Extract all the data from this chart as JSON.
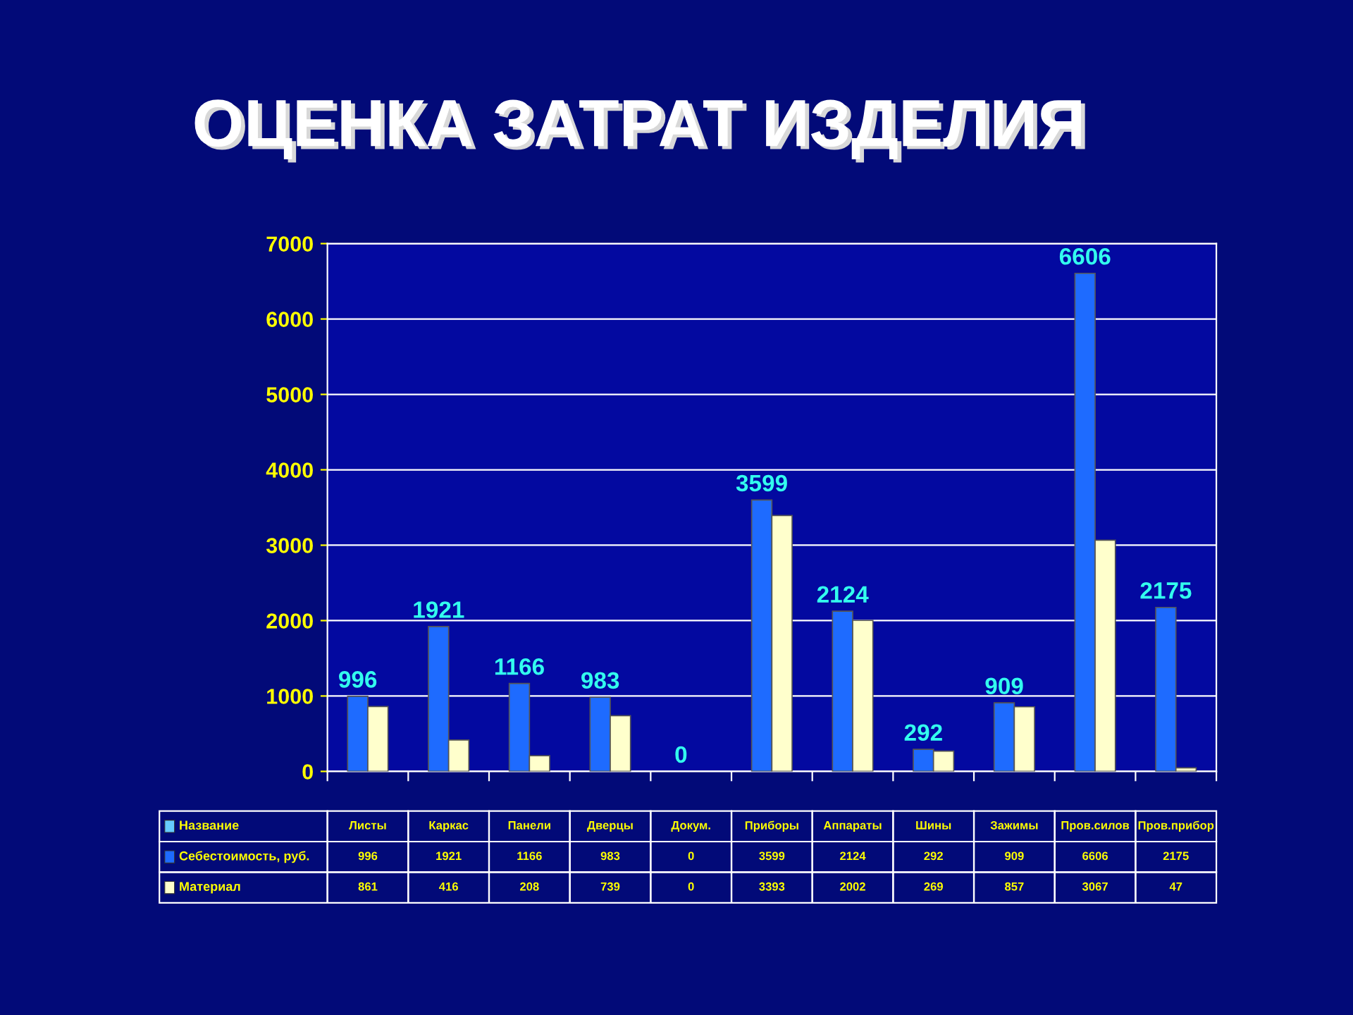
{
  "chart_data": {
    "type": "bar",
    "title": "ОЦЕНКА ЗАТРАТ ИЗДЕЛИЯ",
    "xlabel": "Название",
    "categories": [
      "Листы",
      "Каркас",
      "Панели",
      "Дверцы",
      "Докум.",
      "Приборы",
      "Аппараты",
      "Шины",
      "Зажимы",
      "Пров.силов",
      "Пров.прибор"
    ],
    "series": [
      {
        "name": "Себестоимость, руб.",
        "color": "#1e6bff",
        "values": [
          996,
          1921,
          1166,
          983,
          0,
          3599,
          2124,
          292,
          909,
          6606,
          2175
        ]
      },
      {
        "name": "Материал",
        "color": "#ffffcc",
        "values": [
          861,
          416,
          208,
          739,
          0,
          3393,
          2002,
          269,
          857,
          3067,
          47
        ]
      }
    ],
    "annotations": [
      {
        "text": "996",
        "x": "Листы",
        "y": 996
      },
      {
        "text": "1921",
        "x": "Каркас",
        "y": 1921
      },
      {
        "text": "1166",
        "x": "Панели",
        "y": 1166
      },
      {
        "text": "983",
        "x": "Дверцы",
        "y": 983
      },
      {
        "text": "0",
        "x": "Докум.",
        "y": 0
      },
      {
        "text": "3599",
        "x": "Приборы",
        "y": 3599
      },
      {
        "text": "2124",
        "x": "Аппараты",
        "y": 2124
      },
      {
        "text": "292",
        "x": "Шины",
        "y": 292
      },
      {
        "text": "909",
        "x": "Зажимы",
        "y": 909
      },
      {
        "text": "6606",
        "x": "Пров.силов",
        "y": 6606
      },
      {
        "text": "2175",
        "x": "Пров.прибор",
        "y": 2175
      }
    ],
    "ylim": [
      0,
      7000
    ],
    "yticks": [
      0,
      1000,
      2000,
      3000,
      4000,
      5000,
      6000,
      7000
    ],
    "grid": "y",
    "legend": "bottom",
    "data_labels": true
  }
}
